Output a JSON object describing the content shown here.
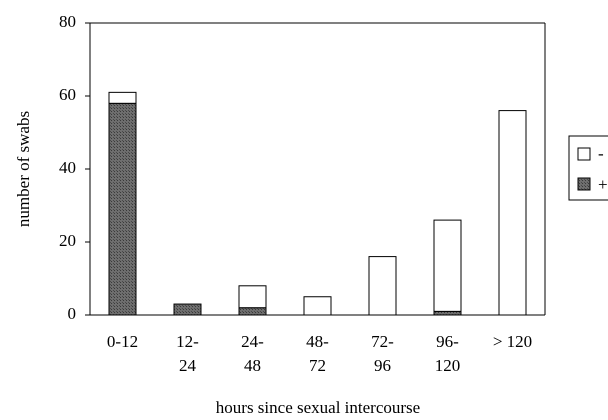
{
  "chart_data": {
    "type": "bar",
    "stacked": true,
    "title": "",
    "xlabel": "hours since sexual intercourse",
    "ylabel": "number of swabs",
    "ylim": [
      0,
      80
    ],
    "yticks": [
      0,
      20,
      40,
      60,
      80
    ],
    "grid": false,
    "legend_placement": "right",
    "categories": [
      [
        "0-12"
      ],
      [
        "12-",
        "24"
      ],
      [
        "24-",
        "48"
      ],
      [
        "48-",
        "72"
      ],
      [
        "72-",
        "96"
      ],
      [
        "96-",
        "120"
      ],
      [
        "> 120"
      ]
    ],
    "series": [
      {
        "name": "+",
        "values": [
          58,
          3,
          2,
          0,
          0,
          1,
          0
        ],
        "color": "#555555"
      },
      {
        "name": "-",
        "values": [
          3,
          0,
          6,
          5,
          16,
          25,
          56
        ],
        "color": "#ffffff"
      }
    ]
  }
}
